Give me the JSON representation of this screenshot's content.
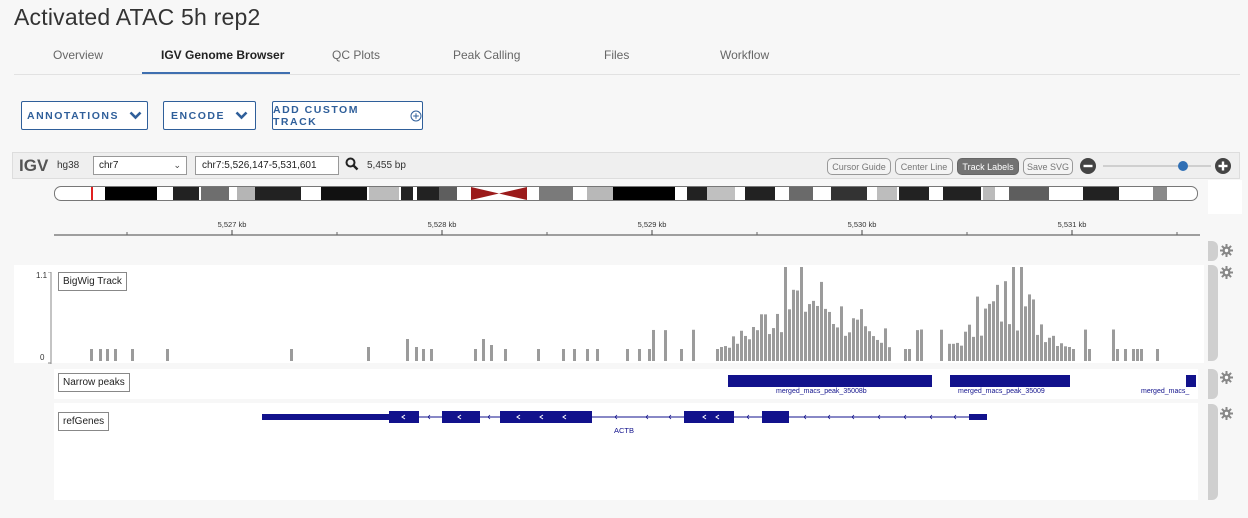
{
  "page": {
    "title": "Activated ATAC 5h rep2"
  },
  "tabs": [
    {
      "label": "Overview"
    },
    {
      "label": "IGV Genome Browser"
    },
    {
      "label": "QC Plots"
    },
    {
      "label": "Peak Calling"
    },
    {
      "label": "Files"
    },
    {
      "label": "Workflow"
    }
  ],
  "toolbar": {
    "annotations_label": "ANNOTATIONS",
    "encode_label": "ENCODE",
    "add_custom_track_label": "ADD CUSTOM TRACK"
  },
  "igv": {
    "logo": "IGV",
    "genome": "hg38",
    "chromosome": "chr7",
    "locus": "chr7:5,526,147-5,531,601",
    "bp_width": "5,455 bp",
    "buttons": {
      "cursor_guide": "Cursor Guide",
      "center_line": "Center Line",
      "track_labels": "Track Labels",
      "save_svg": "Save SVG"
    },
    "zoom_level": 0.82,
    "ruler_ticks": [
      "5,527 kb",
      "5,528 kb",
      "5,529 kb",
      "5,530 kb",
      "5,531 kb"
    ]
  },
  "tracks": {
    "bigwig": {
      "label": "BigWig Track",
      "data_range_max": "1.1",
      "data_range_min": "0"
    },
    "narrow_peaks": {
      "label": "Narrow peaks",
      "features": [
        "merged_macs_peak_35008b",
        "merged_macs_peak_35009",
        "merged_macs_"
      ]
    },
    "refgenes": {
      "label": "refGenes",
      "gene": "ACTB"
    }
  },
  "colors": {
    "accent": "#2f5f9a",
    "feature": "#12128c",
    "signal": "#9b9b9b"
  }
}
